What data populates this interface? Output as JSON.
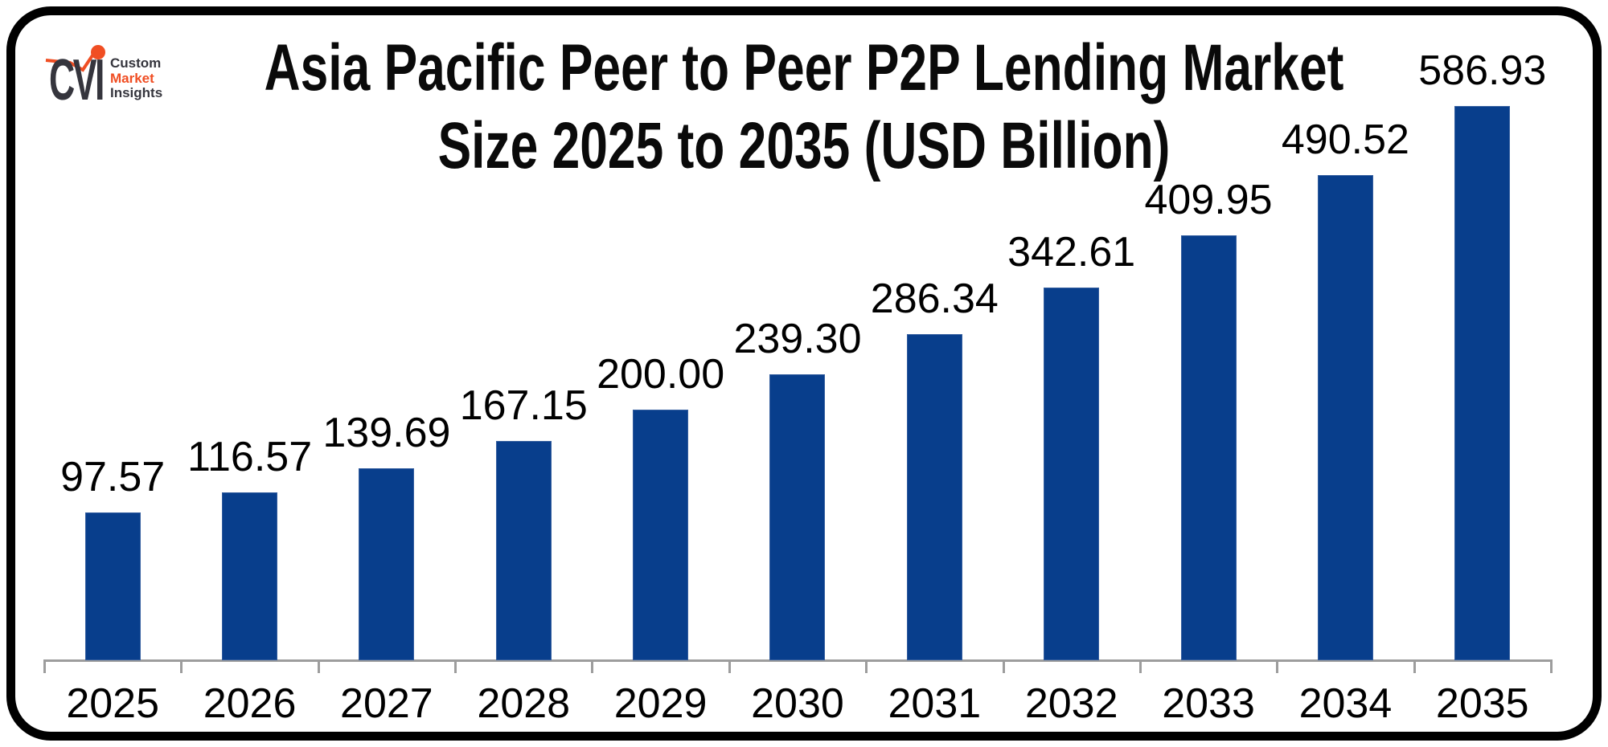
{
  "brand": {
    "mark_text": "CVI",
    "name_lines": [
      "Custom",
      "Market",
      "Insights"
    ],
    "accent_color": "#F04E23",
    "text_color": "#35353D"
  },
  "title": {
    "line1": "Asia Pacific Peer to Peer P2P Lending Market",
    "line2": "Size 2025 to 2035 (USD Billion)"
  },
  "chart_data": {
    "type": "bar",
    "title": "Asia Pacific Peer to Peer P2P Lending Market Size 2025 to 2035 (USD Billion)",
    "unit": "USD Billion",
    "categories": [
      "2025",
      "2026",
      "2027",
      "2028",
      "2029",
      "2030",
      "2031",
      "2032",
      "2033",
      "2034",
      "2035"
    ],
    "values": [
      97.57,
      116.57,
      139.69,
      167.15,
      200.0,
      239.3,
      286.34,
      342.61,
      409.95,
      490.52,
      586.93
    ],
    "value_labels": [
      "97.57",
      "116.57",
      "139.69",
      "167.15",
      "200.00",
      "239.30",
      "286.34",
      "342.61",
      "409.95",
      "490.52",
      "586.93"
    ],
    "xlabel": "",
    "ylabel": "",
    "legend": "none",
    "gridlines": false,
    "bar_color": "#083E8C",
    "axis_color": "#9D9D9D",
    "label_color": "#000000"
  }
}
